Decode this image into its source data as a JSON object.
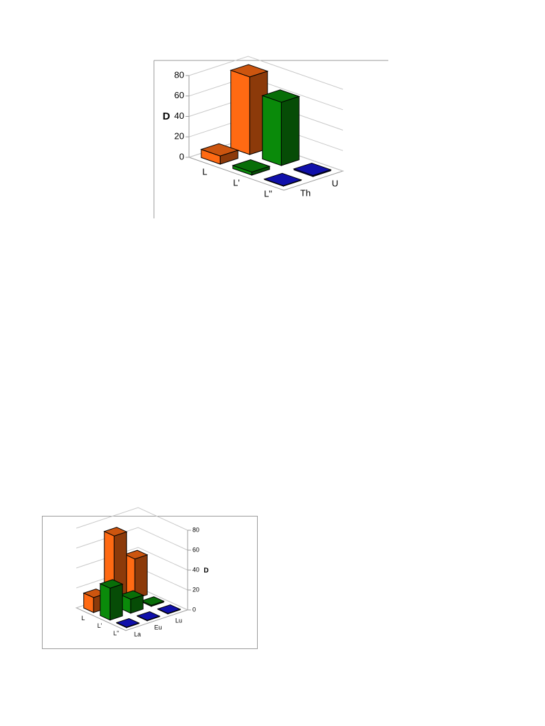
{
  "chart_data": [
    {
      "type": "bar3d",
      "y_label": "D",
      "categories": [
        "Th",
        "U"
      ],
      "series": [
        {
          "name": "L",
          "color": "#ff6a13",
          "values": [
            8,
            76
          ]
        },
        {
          "name": "L'",
          "color": "#0a8a0a",
          "values": [
            3,
            62
          ]
        },
        {
          "name": "L\"",
          "color": "#1414d4",
          "values": [
            0.5,
            1
          ]
        }
      ],
      "ylim": [
        0,
        80
      ],
      "yticks": [
        0,
        20,
        40,
        60,
        80
      ],
      "grid": true
    },
    {
      "type": "bar3d",
      "y_label": "D",
      "categories": [
        "La",
        "Eu",
        "Lu"
      ],
      "series": [
        {
          "name": "L",
          "color": "#ff6a13",
          "values": [
            15,
            70,
            40
          ]
        },
        {
          "name": "L'",
          "color": "#0a8a0a",
          "values": [
            32,
            14,
            1
          ]
        },
        {
          "name": "L\"",
          "color": "#1414d4",
          "values": [
            0.5,
            0.5,
            0.5
          ]
        }
      ],
      "ylim": [
        0,
        80
      ],
      "yticks": [
        0,
        20,
        40,
        60,
        80
      ],
      "grid": true
    }
  ]
}
